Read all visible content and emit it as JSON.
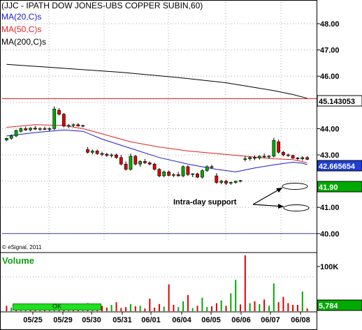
{
  "chart_data": {
    "type": "candlestick",
    "title": "(JJC - IPATH DOW JONES-UBS COPPER SUBIN,60)",
    "indicators": [
      {
        "name": "MA(20,C)s",
        "color": "#1a1acc"
      },
      {
        "name": "MA(50,C)s",
        "color": "#dd2222"
      },
      {
        "name": "MA(200,C)s",
        "color": "#000000"
      }
    ],
    "y_ticks": [
      "48.00",
      "47.00",
      "46.00",
      "44.00",
      "43.00",
      "41.00",
      "40.00"
    ],
    "ylim": [
      39.95,
      48.4
    ],
    "price_badges": [
      {
        "value": "45.143053",
        "bg": "#ffffff",
        "fg": "#000000"
      },
      {
        "value": "42.665654",
        "bg": "#1f3fd6",
        "fg": "#ffffff"
      },
      {
        "value": "41.90",
        "bg": "#00aa00",
        "fg": "#ffffff"
      }
    ],
    "x_labels": [
      "05/25",
      "05/29",
      "05/30",
      "05/31",
      "06/01",
      "06/04",
      "06/05",
      "06/06",
      "06/07",
      "06/08"
    ],
    "candles": [
      [
        43.57,
        43.66,
        43.52,
        43.63
      ],
      [
        43.63,
        43.78,
        43.58,
        43.72
      ],
      [
        43.72,
        43.96,
        43.68,
        43.93
      ],
      [
        43.9,
        44.05,
        43.85,
        44.0
      ],
      [
        44.0,
        44.08,
        43.92,
        43.95
      ],
      [
        43.95,
        44.05,
        43.9,
        44.02
      ],
      [
        44.02,
        44.1,
        43.95,
        43.98
      ],
      [
        43.98,
        44.05,
        43.92,
        44.0
      ],
      [
        44.0,
        44.08,
        43.95,
        43.97
      ],
      [
        43.97,
        44.05,
        43.9,
        44.0
      ],
      [
        44.0,
        44.85,
        43.95,
        44.75
      ],
      [
        44.7,
        44.78,
        44.5,
        44.55
      ],
      [
        44.55,
        44.6,
        44.05,
        44.1
      ],
      [
        44.1,
        44.18,
        44.02,
        44.12
      ],
      [
        44.12,
        44.2,
        44.05,
        44.15
      ],
      [
        44.15,
        44.2,
        44.08,
        44.1
      ],
      [
        44.1,
        44.15,
        44.05,
        44.12
      ],
      [
        43.2,
        43.3,
        43.05,
        43.1
      ],
      [
        43.1,
        43.2,
        43.02,
        43.15
      ],
      [
        43.15,
        43.2,
        43.0,
        43.05
      ],
      [
        43.05,
        43.12,
        42.95,
        43.02
      ],
      [
        43.02,
        43.08,
        42.92,
        42.98
      ],
      [
        42.98,
        43.05,
        42.9,
        43.0
      ],
      [
        43.0,
        43.05,
        42.85,
        42.9
      ],
      [
        42.9,
        43.0,
        42.6,
        42.65
      ],
      [
        42.65,
        42.75,
        42.4,
        42.45
      ],
      [
        42.45,
        43.05,
        42.4,
        42.95
      ],
      [
        42.95,
        43.0,
        42.6,
        42.65
      ],
      [
        42.65,
        42.8,
        42.55,
        42.75
      ],
      [
        42.75,
        42.85,
        42.65,
        42.7
      ],
      [
        42.7,
        42.75,
        42.6,
        42.65
      ],
      [
        42.65,
        42.7,
        42.4,
        42.45
      ],
      [
        42.45,
        42.5,
        42.15,
        42.2
      ],
      [
        42.2,
        42.4,
        42.15,
        42.35
      ],
      [
        42.35,
        42.4,
        42.18,
        42.22
      ],
      [
        42.22,
        42.3,
        42.15,
        42.25
      ],
      [
        42.25,
        42.35,
        42.18,
        42.2
      ],
      [
        42.2,
        42.6,
        42.15,
        42.55
      ],
      [
        42.55,
        42.6,
        42.2,
        42.25
      ],
      [
        42.25,
        42.3,
        42.15,
        42.28
      ],
      [
        42.28,
        42.32,
        42.12,
        42.15
      ],
      [
        42.15,
        42.45,
        42.1,
        42.4
      ],
      [
        42.4,
        42.6,
        42.35,
        42.55
      ],
      [
        42.55,
        42.62,
        42.48,
        42.52
      ],
      [
        42.2,
        42.3,
        41.9,
        41.95
      ],
      [
        41.95,
        42.05,
        41.88,
        42.0
      ],
      [
        42.0,
        42.05,
        41.85,
        41.92
      ],
      [
        41.92,
        41.98,
        41.86,
        41.95
      ],
      [
        41.95,
        42.02,
        41.9,
        42.0
      ],
      [
        42.0,
        42.05,
        41.95,
        42.02
      ],
      [
        42.82,
        42.95,
        42.75,
        42.85
      ],
      [
        42.85,
        42.95,
        42.78,
        42.9
      ],
      [
        42.9,
        42.98,
        42.8,
        42.88
      ],
      [
        42.88,
        42.98,
        42.82,
        42.95
      ],
      [
        42.95,
        43.05,
        42.88,
        42.92
      ],
      [
        42.92,
        43.0,
        42.85,
        42.95
      ],
      [
        42.95,
        43.65,
        42.9,
        43.55
      ],
      [
        43.5,
        43.58,
        43.05,
        43.1
      ],
      [
        43.1,
        43.15,
        42.95,
        43.0
      ],
      [
        43.0,
        43.05,
        42.92,
        42.98
      ],
      [
        42.98,
        43.0,
        42.85,
        42.88
      ],
      [
        42.88,
        42.92,
        42.8,
        42.85
      ],
      [
        42.85,
        42.95,
        42.78,
        42.9
      ],
      [
        42.9,
        42.95,
        42.8,
        42.83
      ]
    ],
    "ma20": [
      [
        0,
        43.72
      ],
      [
        6,
        43.85
      ],
      [
        12,
        43.95
      ],
      [
        16,
        43.9
      ],
      [
        20,
        43.6
      ],
      [
        26,
        43.25
      ],
      [
        32,
        42.9
      ],
      [
        38,
        42.65
      ],
      [
        44,
        42.45
      ],
      [
        48,
        42.35
      ],
      [
        52,
        42.5
      ],
      [
        56,
        42.62
      ],
      [
        60,
        42.72
      ],
      [
        62,
        42.68
      ],
      [
        63,
        42.63
      ]
    ],
    "ma50": [
      [
        0,
        44.05
      ],
      [
        6,
        44.15
      ],
      [
        12,
        44.12
      ],
      [
        16,
        44.0
      ],
      [
        20,
        43.8
      ],
      [
        26,
        43.5
      ],
      [
        32,
        43.3
      ],
      [
        38,
        43.15
      ],
      [
        44,
        43.05
      ],
      [
        50,
        42.95
      ],
      [
        56,
        42.85
      ],
      [
        60,
        42.82
      ],
      [
        63,
        42.7
      ]
    ],
    "ma200": [
      [
        0,
        46.45
      ],
      [
        12,
        46.3
      ],
      [
        24,
        46.15
      ],
      [
        36,
        45.95
      ],
      [
        46,
        45.75
      ],
      [
        56,
        45.45
      ],
      [
        60,
        45.3
      ],
      [
        63,
        45.16
      ]
    ],
    "horizontal_lines": [
      {
        "y": 45.143053,
        "color": "#e01010"
      },
      {
        "y": 40.0,
        "color": "#4040a0"
      }
    ],
    "annotation": "Intra-day support",
    "copyright": "© eSignal, 2011",
    "volume": {
      "title": "Volume",
      "y_ticks": [
        "100K"
      ],
      "last_value": "5,784",
      "ok_label": "OK",
      "max": 128000,
      "bars": [
        12000,
        8000,
        10000,
        6000,
        5000,
        9000,
        7000,
        4000,
        8000,
        6000,
        11000,
        15000,
        9000,
        5000,
        7000,
        6000,
        4000,
        18000,
        9000,
        6000,
        12000,
        8000,
        14000,
        20000,
        7000,
        9000,
        16000,
        11000,
        12000,
        6000,
        28000,
        8000,
        16000,
        10000,
        60000,
        14000,
        9000,
        22000,
        36000,
        7000,
        12000,
        30000,
        9000,
        11000,
        18000,
        24000,
        12000,
        40000,
        70000,
        15000,
        125000,
        18000,
        22000,
        16000,
        26000,
        12000,
        62000,
        20000,
        32000,
        18000,
        14000,
        14000,
        44000,
        6000
      ],
      "bar_colors": [
        "r",
        "g",
        "r",
        "g",
        "g",
        "r",
        "r",
        "g",
        "r",
        "g",
        "g",
        "r",
        "r",
        "g",
        "r",
        "r",
        "g",
        "r",
        "g",
        "r",
        "r",
        "r",
        "g",
        "r",
        "r",
        "r",
        "g",
        "r",
        "g",
        "r",
        "r",
        "r",
        "r",
        "g",
        "r",
        "r",
        "g",
        "g",
        "r",
        "g",
        "r",
        "g",
        "g",
        "r",
        "r",
        "g",
        "r",
        "g",
        "g",
        "r",
        "r",
        "g",
        "r",
        "g",
        "r",
        "g",
        "g",
        "r",
        "r",
        "r",
        "r",
        "r",
        "g",
        "r"
      ]
    }
  }
}
